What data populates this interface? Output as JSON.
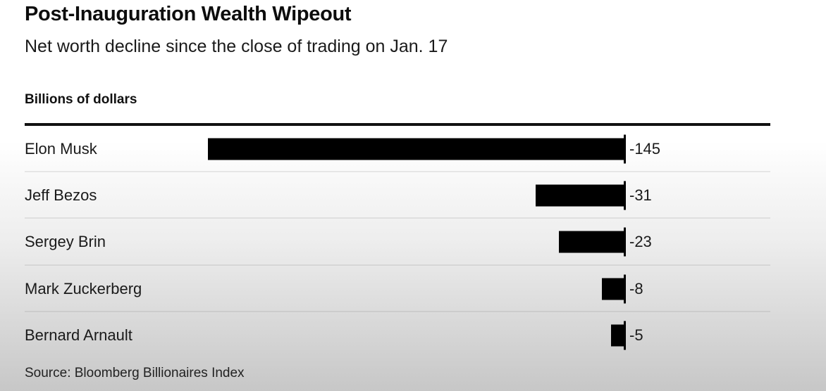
{
  "header": {
    "title": "Post-Inauguration Wealth Wipeout",
    "subtitle": "Net worth decline since the close of trading on Jan. 17"
  },
  "axis": {
    "unit_label": "Billions of dollars"
  },
  "footer": {
    "source": "Source: Bloomberg Billionaires Index"
  },
  "colors": {
    "bar": "#000000",
    "text": "#1a1a1a",
    "rule": "#111111",
    "background_top": "#ffffff",
    "background_bottom": "#c7c7c7"
  },
  "chart_data": {
    "type": "bar",
    "orientation": "horizontal",
    "title": "Post-Inauguration Wealth Wipeout",
    "subtitle": "Net worth decline since the close of trading on Jan. 17",
    "xlabel": "Billions of dollars",
    "categories": [
      "Elon Musk",
      "Jeff Bezos",
      "Sergey Brin",
      "Mark Zuckerberg",
      "Bernard Arnault"
    ],
    "values": [
      -145,
      -31,
      -23,
      -8,
      -5
    ],
    "value_labels": [
      "-145",
      "-31",
      "-23",
      "-8",
      "-5"
    ],
    "xlim": [
      -145,
      0
    ],
    "baseline": 0,
    "grid": false,
    "legend": "none",
    "bar_color": "#000000",
    "source": "Source: Bloomberg Billionaires Index"
  }
}
